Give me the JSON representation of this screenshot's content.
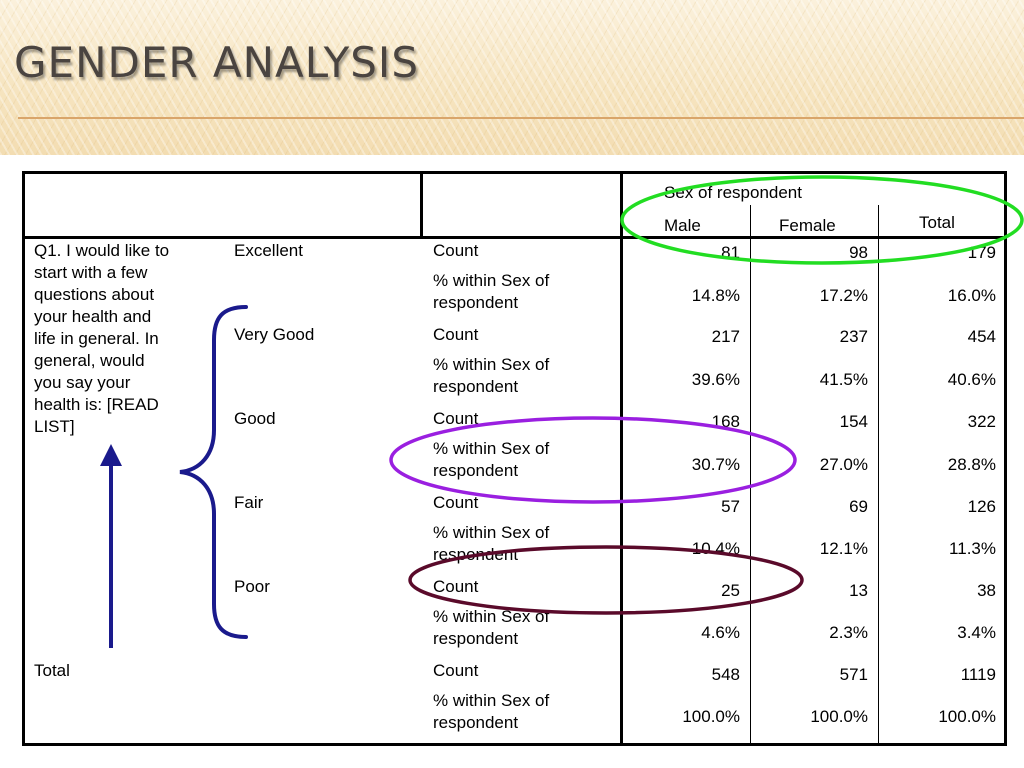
{
  "slide": {
    "title": "GENDER ANALYSIS"
  },
  "table": {
    "column_group_header": "Sex of respondent",
    "columns": [
      "Male",
      "Female",
      "Total"
    ],
    "question": {
      "lines": [
        "Q1. I would like to",
        "start with a few",
        "questions about",
        "your health and",
        "life in general.  In",
        "general, would",
        "you say your",
        "health is:   [READ",
        "LIST]"
      ]
    },
    "stat_labels": {
      "count": "Count",
      "pct_line1": "% within Sex of",
      "pct_line2": "respondent"
    },
    "rows": [
      {
        "category": "Excellent",
        "count": [
          "81",
          "98",
          "179"
        ],
        "pct": [
          "14.8%",
          "17.2%",
          "16.0%"
        ]
      },
      {
        "category": "Very Good",
        "count": [
          "217",
          "237",
          "454"
        ],
        "pct": [
          "39.6%",
          "41.5%",
          "40.6%"
        ]
      },
      {
        "category": "Good",
        "count": [
          "168",
          "154",
          "322"
        ],
        "pct": [
          "30.7%",
          "27.0%",
          "28.8%"
        ]
      },
      {
        "category": "Fair",
        "count": [
          "57",
          "69",
          "126"
        ],
        "pct": [
          "10.4%",
          "12.1%",
          "11.3%"
        ]
      },
      {
        "category": "Poor",
        "count": [
          "25",
          "13",
          "38"
        ],
        "pct": [
          "4.6%",
          "2.3%",
          "3.4%"
        ]
      }
    ],
    "total": {
      "label": "Total",
      "count": [
        "548",
        "571",
        "1119"
      ],
      "pct": [
        "100.0%",
        "100.0%",
        "100.0%"
      ]
    }
  },
  "annotation_colors": {
    "header_ellipse": "#22dd22",
    "good_pct_ellipse": "#9a1fe0",
    "poor_count_ellipse": "#5a0a2a",
    "brace_and_arrow": "#1a1a8c"
  }
}
